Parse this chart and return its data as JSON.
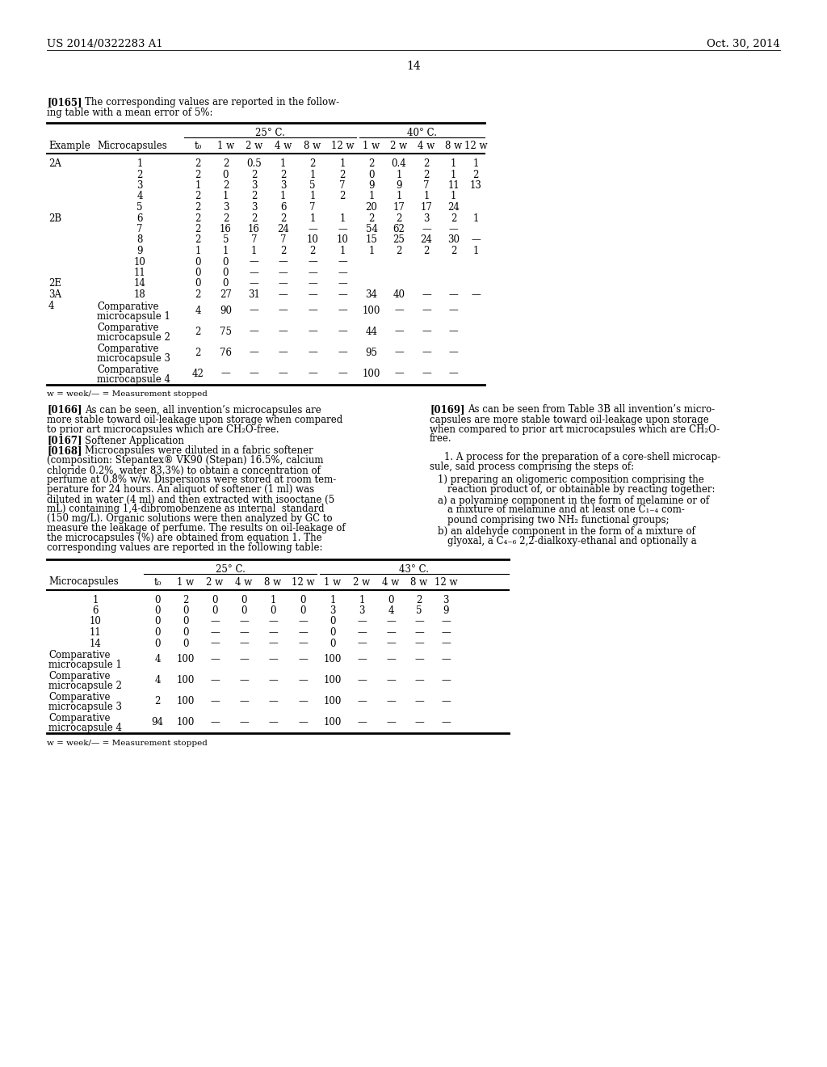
{
  "header_left": "US 2014/0322283 A1",
  "header_right": "Oct. 30, 2014",
  "page_number": "14",
  "table1_title_25": "25° C.",
  "table1_title_40": "40° C.",
  "table1_cols": [
    "Example",
    "Microcapsules",
    "t₀",
    "1 w",
    "2 w",
    "4 w",
    "8 w",
    "12 w",
    "1 w",
    "2 w",
    "4 w",
    "8 w",
    "12 w"
  ],
  "table1_rows": [
    [
      "2A",
      "1",
      "2",
      "2",
      "0.5",
      "1",
      "2",
      "1",
      "2",
      "0.4",
      "2",
      "1",
      "1"
    ],
    [
      "",
      "2",
      "2",
      "0",
      "2",
      "2",
      "1",
      "2",
      "0",
      "1",
      "2",
      "1",
      "2"
    ],
    [
      "",
      "3",
      "1",
      "2",
      "3",
      "3",
      "5",
      "7",
      "9",
      "9",
      "7",
      "11",
      "13"
    ],
    [
      "",
      "4",
      "2",
      "1",
      "2",
      "1",
      "1",
      "2",
      "1",
      "1",
      "1",
      "1",
      ""
    ],
    [
      "",
      "5",
      "2",
      "3",
      "3",
      "6",
      "7",
      "",
      "20",
      "17",
      "17",
      "24",
      ""
    ],
    [
      "2B",
      "6",
      "2",
      "2",
      "2",
      "2",
      "1",
      "1",
      "2",
      "2",
      "3",
      "2",
      "1"
    ],
    [
      "",
      "7",
      "2",
      "16",
      "16",
      "24",
      "—",
      "—",
      "54",
      "62",
      "—",
      "—",
      ""
    ],
    [
      "",
      "8",
      "2",
      "5",
      "7",
      "7",
      "10",
      "10",
      "15",
      "25",
      "24",
      "30",
      "—"
    ],
    [
      "",
      "9",
      "1",
      "1",
      "1",
      "2",
      "2",
      "1",
      "1",
      "2",
      "2",
      "2",
      "1"
    ],
    [
      "",
      "10",
      "0",
      "0",
      "—",
      "—",
      "—",
      "—",
      "",
      "",
      "",
      "",
      ""
    ],
    [
      "",
      "11",
      "0",
      "0",
      "—",
      "—",
      "—",
      "—",
      "",
      "",
      "",
      "",
      ""
    ],
    [
      "2E",
      "14",
      "0",
      "0",
      "—",
      "—",
      "—",
      "—",
      "",
      "",
      "",
      "",
      ""
    ],
    [
      "3A",
      "18",
      "2",
      "27",
      "31",
      "—",
      "—",
      "—",
      "34",
      "40",
      "—",
      "—",
      "—"
    ],
    [
      "4",
      "Comparative\nmicrocapsule 1",
      "4",
      "90",
      "—",
      "—",
      "—",
      "—",
      "100",
      "—",
      "—",
      "—",
      ""
    ],
    [
      "",
      "Comparative\nmicrocapsule 2",
      "2",
      "75",
      "—",
      "—",
      "—",
      "—",
      "44",
      "—",
      "—",
      "—",
      ""
    ],
    [
      "",
      "Comparative\nmicrocapsule 3",
      "2",
      "76",
      "—",
      "—",
      "—",
      "—",
      "95",
      "—",
      "—",
      "—",
      ""
    ],
    [
      "",
      "Comparative\nmicrocapsule 4",
      "42",
      "—",
      "—",
      "—",
      "—",
      "—",
      "100",
      "—",
      "—",
      "—",
      ""
    ]
  ],
  "table1_footnote": "w = week/— = Measurement stopped",
  "table2_title_25": "25° C.",
  "table2_title_43": "43° C.",
  "table2_cols": [
    "Microcapsules",
    "t₀",
    "1 w",
    "2 w",
    "4 w",
    "8 w",
    "12 w",
    "1 w",
    "2 w",
    "4 w",
    "8 w",
    "12 w"
  ],
  "table2_rows": [
    [
      "1",
      "0",
      "2",
      "0",
      "0",
      "1",
      "0",
      "1",
      "1",
      "0",
      "2",
      "3"
    ],
    [
      "6",
      "0",
      "0",
      "0",
      "0",
      "0",
      "0",
      "3",
      "3",
      "4",
      "5",
      "9"
    ],
    [
      "10",
      "0",
      "0",
      "—",
      "—",
      "—",
      "—",
      "0",
      "—",
      "—",
      "—",
      "—"
    ],
    [
      "11",
      "0",
      "0",
      "—",
      "—",
      "—",
      "—",
      "0",
      "—",
      "—",
      "—",
      "—"
    ],
    [
      "14",
      "0",
      "0",
      "—",
      "—",
      "—",
      "—",
      "0",
      "—",
      "—",
      "—",
      "—"
    ],
    [
      "Comparative\nmicrocapsule 1",
      "4",
      "100",
      "—",
      "—",
      "—",
      "—",
      "100",
      "—",
      "—",
      "—",
      "—"
    ],
    [
      "Comparative\nmicrocapsule 2",
      "4",
      "100",
      "—",
      "—",
      "—",
      "—",
      "100",
      "—",
      "—",
      "—",
      "—"
    ],
    [
      "Comparative\nmicrocapsule 3",
      "2",
      "100",
      "—",
      "—",
      "—",
      "—",
      "100",
      "—",
      "—",
      "—",
      "—"
    ],
    [
      "Comparative\nmicrocapsule 4",
      "94",
      "100",
      "—",
      "—",
      "—",
      "—",
      "100",
      "—",
      "—",
      "—",
      "—"
    ]
  ],
  "table2_footnote": "w = week/— = Measurement stopped"
}
